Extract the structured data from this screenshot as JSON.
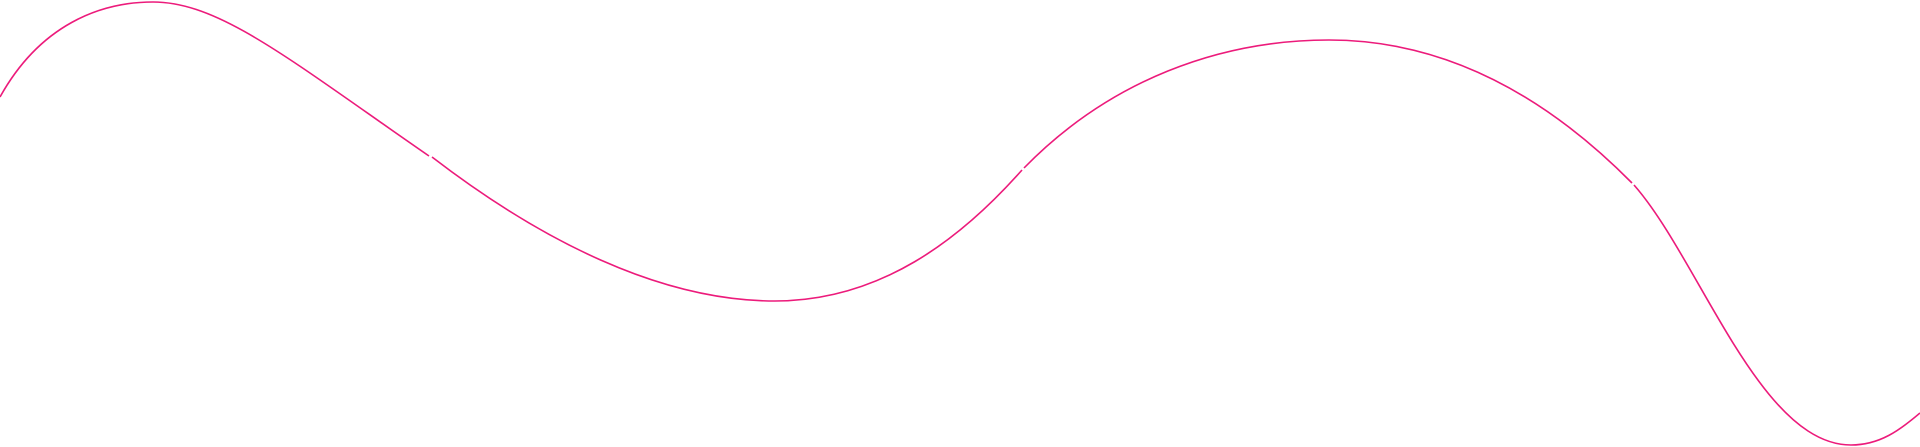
{
  "decoration": {
    "type": "wavy-line",
    "stroke_color": "#ec1b7b",
    "background_color": "#ffffff",
    "segment_count": 4
  }
}
